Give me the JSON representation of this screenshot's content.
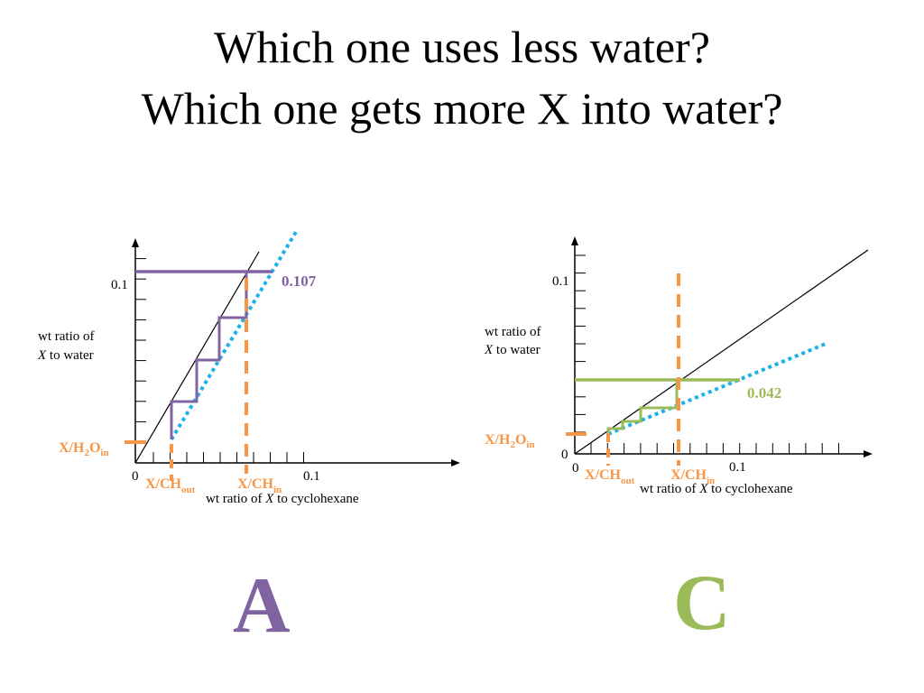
{
  "slide": {
    "title_line1": "Which one uses less water?",
    "title_line2": "Which one gets more X into water?"
  },
  "colors": {
    "purple": "#8064a2",
    "green": "#9bbb59",
    "orange": "#f79646",
    "blue": "#1ab2e8",
    "axis": "#000000"
  },
  "panels": [
    {
      "id": "A",
      "letter": "A",
      "color": "purple",
      "y_tick_label": "0.1",
      "y_axis_label_line1": "wt ratio of",
      "y_axis_label_line2_italic": "X",
      "y_axis_label_line2_rest": " to water",
      "x_origin_label": "0",
      "x_tick_label": "0.1",
      "x_axis_label_prefix": "wt ratio of ",
      "x_axis_label_italic": "X",
      "x_axis_label_suffix": " to cyclohexane",
      "outlet_value_label": "0.107",
      "h2o_in_label": {
        "base": "X/H",
        "sub1": "2",
        "mid": "O",
        "sub2": "in"
      },
      "ch_out_label": {
        "base": "X/CH",
        "sub": "out"
      },
      "ch_in_label": {
        "base": "X/CH",
        "sub": "in"
      },
      "stages": 4
    },
    {
      "id": "C",
      "letter": "C",
      "color": "green",
      "y_tick_label": "0.1",
      "y_axis_label_line1": "wt ratio of",
      "y_axis_label_line2_italic": "X",
      "y_axis_label_line2_rest": " to water",
      "x_origin_label": "0",
      "x_tick_label": "0.1",
      "x_axis_label_prefix": "wt ratio of ",
      "x_axis_label_italic": "X",
      "x_axis_label_suffix": " to cyclohexane",
      "outlet_value_label": "0.042",
      "h2o_in_label": {
        "base": "X/H",
        "sub1": "2",
        "mid": "O",
        "sub2": "in"
      },
      "ch_out_label": {
        "base": "X/CH",
        "sub": "out"
      },
      "ch_in_label": {
        "base": "X/CH",
        "sub": "in"
      },
      "stages": 4
    }
  ]
}
